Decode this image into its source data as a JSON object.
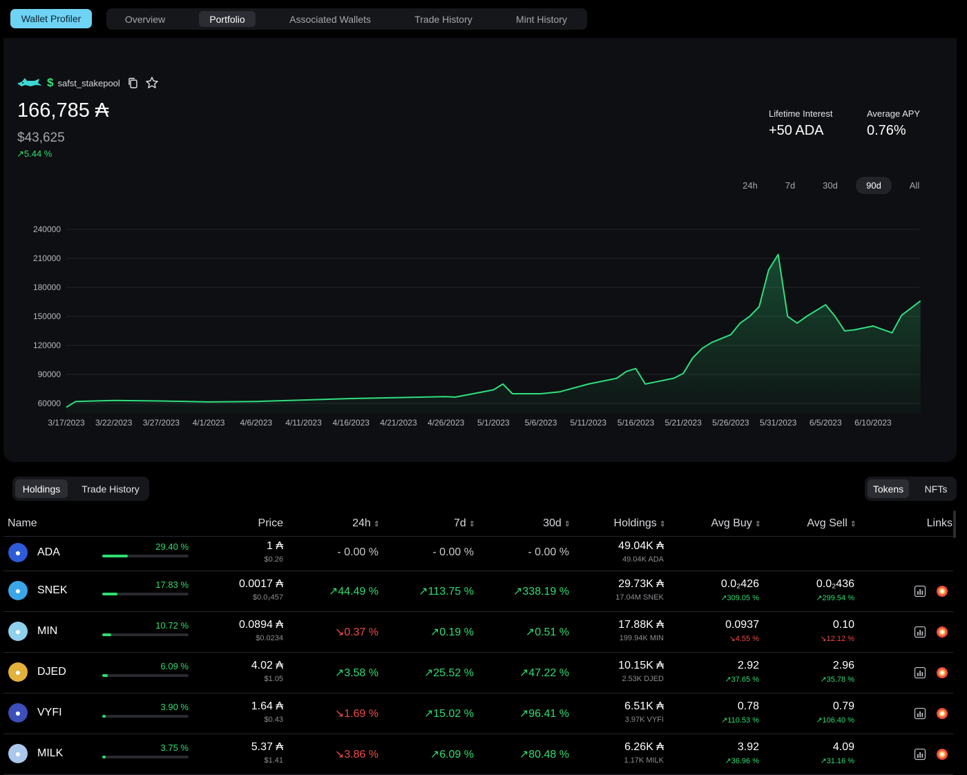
{
  "nav": {
    "profiler_label": "Wallet Profiler",
    "tabs": [
      {
        "label": "Overview",
        "active": false
      },
      {
        "label": "Portfolio",
        "active": true
      },
      {
        "label": "Associated Wallets",
        "active": false
      },
      {
        "label": "Trade History",
        "active": false
      },
      {
        "label": "Mint History",
        "active": false
      }
    ]
  },
  "wallet": {
    "icon": "shark-icon",
    "handle_prefix": "$",
    "name": "safst_stakepool",
    "balance_ada": "166,785 ₳",
    "balance_usd": "$43,625",
    "change": "↗5.44 %"
  },
  "stats": {
    "lifetime_interest_label": "Lifetime Interest",
    "lifetime_interest_value": "+50 ADA",
    "average_apy_label": "Average APY",
    "average_apy_value": "0.76%"
  },
  "ranges": [
    {
      "label": "24h",
      "active": false
    },
    {
      "label": "7d",
      "active": false
    },
    {
      "label": "30d",
      "active": false
    },
    {
      "label": "90d",
      "active": true
    },
    {
      "label": "All",
      "active": false
    }
  ],
  "chart_data": {
    "type": "area",
    "title": "",
    "xlabel": "",
    "ylabel": "",
    "ylim": [
      50000,
      240000
    ],
    "yticks": [
      "240000",
      "210000",
      "180000",
      "150000",
      "120000",
      "90000",
      "60000"
    ],
    "xticks": [
      "3/17/2023",
      "3/22/2023",
      "3/27/2023",
      "4/1/2023",
      "4/6/2023",
      "4/11/2023",
      "4/16/2023",
      "4/21/2023",
      "4/26/2023",
      "5/1/2023",
      "5/6/2023",
      "5/11/2023",
      "5/16/2023",
      "5/21/2023",
      "5/26/2023",
      "5/31/2023",
      "6/5/2023",
      "6/10/2023"
    ],
    "grid": true,
    "color": "#2fe07f",
    "x": [
      "3/17/2023",
      "3/18/2023",
      "3/22/2023",
      "3/27/2023",
      "4/1/2023",
      "4/6/2023",
      "4/11/2023",
      "4/16/2023",
      "4/21/2023",
      "4/26/2023",
      "4/27/2023",
      "5/1/2023",
      "5/2/2023",
      "5/3/2023",
      "5/6/2023",
      "5/8/2023",
      "5/11/2023",
      "5/14/2023",
      "5/15/2023",
      "5/16/2023",
      "5/17/2023",
      "5/18/2023",
      "5/20/2023",
      "5/21/2023",
      "5/22/2023",
      "5/23/2023",
      "5/24/2023",
      "5/26/2023",
      "5/27/2023",
      "5/28/2023",
      "5/29/2023",
      "5/30/2023",
      "5/31/2023",
      "6/1/2023",
      "6/2/2023",
      "6/3/2023",
      "6/5/2023",
      "6/6/2023",
      "6/7/2023",
      "6/8/2023",
      "6/10/2023",
      "6/12/2023",
      "6/13/2023",
      "6/15/2023"
    ],
    "values": [
      56000,
      62000,
      63000,
      62500,
      61500,
      62000,
      63500,
      65000,
      66000,
      67000,
      66500,
      74000,
      80000,
      70000,
      70000,
      72000,
      80000,
      86000,
      93000,
      96000,
      80000,
      82000,
      86000,
      91000,
      107000,
      117000,
      123000,
      131000,
      143000,
      150000,
      160000,
      198000,
      214000,
      150000,
      143000,
      150000,
      162000,
      150000,
      135000,
      136000,
      140000,
      133000,
      151000,
      166000
    ]
  },
  "subtabs": {
    "left": [
      {
        "label": "Holdings",
        "active": true
      },
      {
        "label": "Trade History",
        "active": false
      }
    ],
    "right": [
      {
        "label": "Tokens",
        "active": true
      },
      {
        "label": "NFTs",
        "active": false
      }
    ]
  },
  "table": {
    "headers": {
      "name": "Name",
      "price": "Price",
      "h24": "24h",
      "d7": "7d",
      "d30": "30d",
      "holdings": "Holdings",
      "avg_buy": "Avg Buy",
      "avg_sell": "Avg Sell",
      "links": "Links"
    },
    "rows": [
      {
        "name": "ADA",
        "icon": "cardano-icon",
        "icon_color": "#2e5bd8",
        "share": "29.40 %",
        "share_value": 29.4,
        "price": "1 ₳",
        "price_usd": "$0.26",
        "h24": "- 0.00 %",
        "h24_dir": "flat",
        "d7": "- 0.00 %",
        "d7_dir": "flat",
        "d30": "- 0.00 %",
        "d30_dir": "flat",
        "holdings": "49.04K ₳",
        "holdings_sub": "49.04K ADA",
        "avg_buy": "",
        "avg_buy_chg": "",
        "avg_buy_dir": "up",
        "avg_sell": "",
        "avg_sell_chg": "",
        "avg_sell_dir": "up",
        "links": false
      },
      {
        "name": "SNEK",
        "icon": "snek-icon",
        "icon_color": "#3aa6e8",
        "share": "17.83 %",
        "share_value": 17.83,
        "price": "0.0017 ₳",
        "price_usd": "$0.0₂457",
        "h24": "↗44.49 %",
        "h24_dir": "up",
        "d7": "↗113.75 %",
        "d7_dir": "up",
        "d30": "↗338.19 %",
        "d30_dir": "up",
        "holdings": "29.73K ₳",
        "holdings_sub": "17.04M SNEK",
        "avg_buy": "0.0₂426",
        "avg_buy_chg": "↗309.05 %",
        "avg_buy_dir": "up",
        "avg_sell": "0.0₂436",
        "avg_sell_chg": "↗299.54 %",
        "avg_sell_dir": "up",
        "links": true
      },
      {
        "name": "MIN",
        "icon": "minswap-cat-icon",
        "icon_color": "#8fd0ec",
        "share": "10.72 %",
        "share_value": 10.72,
        "price": "0.0894 ₳",
        "price_usd": "$0.0234",
        "h24": "↘0.37 %",
        "h24_dir": "down",
        "d7": "↗0.19 %",
        "d7_dir": "up",
        "d30": "↗0.51 %",
        "d30_dir": "up",
        "holdings": "17.88K ₳",
        "holdings_sub": "199.94K MIN",
        "avg_buy": "0.0937",
        "avg_buy_chg": "↘4.55 %",
        "avg_buy_dir": "down",
        "avg_sell": "0.10",
        "avg_sell_chg": "↘12.12 %",
        "avg_sell_dir": "down",
        "links": true
      },
      {
        "name": "DJED",
        "icon": "djed-coin-icon",
        "icon_color": "#e3b13c",
        "share": "6.09 %",
        "share_value": 6.09,
        "price": "4.02 ₳",
        "price_usd": "$1.05",
        "h24": "↗3.58 %",
        "h24_dir": "up",
        "d7": "↗25.52 %",
        "d7_dir": "up",
        "d30": "↗47.22 %",
        "d30_dir": "up",
        "holdings": "10.15K ₳",
        "holdings_sub": "2.53K DJED",
        "avg_buy": "2.92",
        "avg_buy_chg": "↗37.65 %",
        "avg_buy_dir": "up",
        "avg_sell": "2.96",
        "avg_sell_chg": "↗35.78 %",
        "avg_sell_dir": "up",
        "links": true
      },
      {
        "name": "VYFI",
        "icon": "vyfi-icon",
        "icon_color": "#3d4fb8",
        "share": "3.90 %",
        "share_value": 3.9,
        "price": "1.64 ₳",
        "price_usd": "$0.43",
        "h24": "↘1.69 %",
        "h24_dir": "down",
        "d7": "↗15.02 %",
        "d7_dir": "up",
        "d30": "↗96.41 %",
        "d30_dir": "up",
        "holdings": "6.51K ₳",
        "holdings_sub": "3.97K VYFI",
        "avg_buy": "0.78",
        "avg_buy_chg": "↗110.53 %",
        "avg_buy_dir": "up",
        "avg_sell": "0.79",
        "avg_sell_chg": "↗106.40 %",
        "avg_sell_dir": "up",
        "links": true
      },
      {
        "name": "MILK",
        "icon": "milk-carton-icon",
        "icon_color": "#a9c8ec",
        "share": "3.75 %",
        "share_value": 3.75,
        "price": "5.37 ₳",
        "price_usd": "$1.41",
        "h24": "↘3.86 %",
        "h24_dir": "down",
        "d7": "↗6.09 %",
        "d7_dir": "up",
        "d30": "↗80.48 %",
        "d30_dir": "up",
        "holdings": "6.26K ₳",
        "holdings_sub": "1.17K MILK",
        "avg_buy": "3.92",
        "avg_buy_chg": "↗36.96 %",
        "avg_buy_dir": "up",
        "avg_sell": "4.09",
        "avg_sell_chg": "↗31.16 %",
        "avg_sell_dir": "up",
        "links": true
      }
    ]
  }
}
